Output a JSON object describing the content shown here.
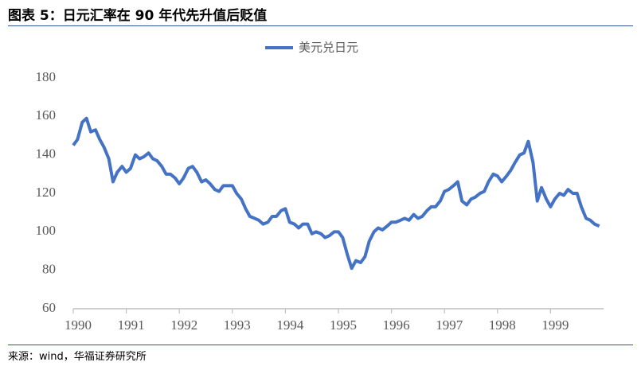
{
  "chart_data": {
    "type": "line",
    "title": "图表 5：日元汇率在 90 年代先升值后贬值",
    "source": "来源：wind，华福证券研究所",
    "x": [
      1990,
      1990.08,
      1990.17,
      1990.25,
      1990.33,
      1990.42,
      1990.5,
      1990.58,
      1990.67,
      1990.75,
      1990.83,
      1990.92,
      1991,
      1991.08,
      1991.17,
      1991.25,
      1991.33,
      1991.42,
      1991.5,
      1991.58,
      1991.67,
      1991.75,
      1991.83,
      1991.92,
      1992,
      1992.08,
      1992.17,
      1992.25,
      1992.33,
      1992.42,
      1992.5,
      1992.58,
      1992.67,
      1992.75,
      1992.83,
      1992.92,
      1993,
      1993.08,
      1993.17,
      1993.25,
      1993.33,
      1993.42,
      1993.5,
      1993.58,
      1993.67,
      1993.75,
      1993.83,
      1993.92,
      1994,
      1994.08,
      1994.17,
      1994.25,
      1994.33,
      1994.42,
      1994.5,
      1994.58,
      1994.67,
      1994.75,
      1994.83,
      1994.92,
      1995,
      1995.08,
      1995.17,
      1995.25,
      1995.33,
      1995.42,
      1995.5,
      1995.58,
      1995.67,
      1995.75,
      1995.83,
      1995.92,
      1996,
      1996.08,
      1996.17,
      1996.25,
      1996.33,
      1996.42,
      1996.5,
      1996.58,
      1996.67,
      1996.75,
      1996.83,
      1996.92,
      1997,
      1997.08,
      1997.17,
      1997.25,
      1997.33,
      1997.42,
      1997.5,
      1997.58,
      1997.67,
      1997.75,
      1997.83,
      1997.92,
      1998,
      1998.08,
      1998.17,
      1998.25,
      1998.33,
      1998.42,
      1998.5,
      1998.58,
      1998.67,
      1998.75,
      1998.83,
      1998.92,
      1999,
      1999.08,
      1999.17,
      1999.25,
      1999.33,
      1999.42,
      1999.5,
      1999.58,
      1999.67,
      1999.75,
      1999.83,
      1999.92
    ],
    "series": [
      {
        "name": "美元兑日元",
        "color": "#4472c4",
        "values": [
          145,
          148,
          157,
          159,
          152,
          153,
          148,
          144,
          138,
          126,
          131,
          134,
          131,
          133,
          140,
          138,
          139,
          141,
          138,
          137,
          134,
          130,
          130,
          128,
          125,
          128,
          133,
          134,
          131,
          126,
          127,
          125,
          122,
          121,
          124,
          124,
          124,
          120,
          117,
          112,
          108,
          107,
          106,
          104,
          105,
          108,
          108,
          111,
          112,
          105,
          104,
          102,
          104,
          104,
          99,
          100,
          99,
          97,
          98,
          100,
          100,
          97,
          88,
          81,
          85,
          84,
          87,
          95,
          100,
          102,
          101,
          103,
          105,
          105,
          106,
          107,
          106,
          109,
          107,
          108,
          111,
          113,
          113,
          116,
          121,
          122,
          124,
          126,
          116,
          114,
          117,
          118,
          120,
          121,
          126,
          130,
          129,
          126,
          129,
          132,
          136,
          140,
          141,
          147,
          136,
          116,
          123,
          117,
          113,
          117,
          120,
          119,
          122,
          120,
          120,
          113,
          107,
          106,
          104,
          103
        ]
      }
    ],
    "xlim": [
      1990,
      2000
    ],
    "xticks": [
      1990,
      1991,
      1992,
      1993,
      1994,
      1995,
      1996,
      1997,
      1998,
      1999
    ],
    "ylim": [
      60,
      180
    ],
    "yticks": [
      60,
      80,
      100,
      120,
      140,
      160,
      180
    ],
    "legend": "top"
  }
}
